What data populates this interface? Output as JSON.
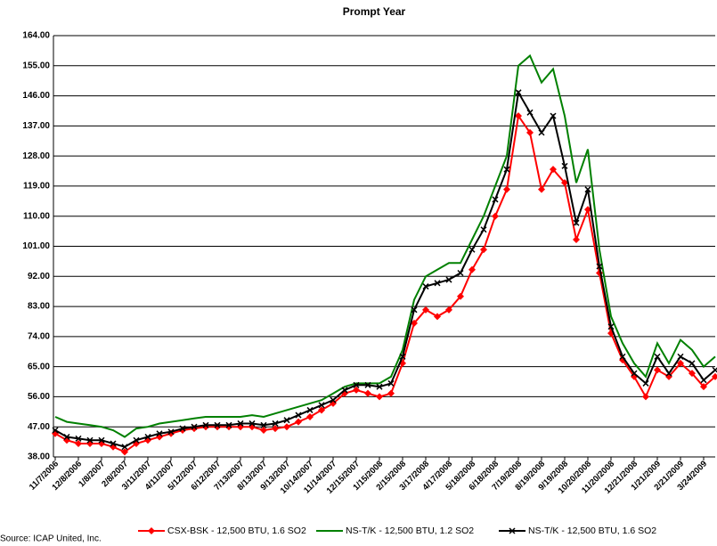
{
  "chart_data": {
    "type": "line",
    "title": "Prompt Year",
    "source": "Source:  ICAP United, Inc.",
    "categories": [
      "11/7/2006",
      null,
      "12/8/2006",
      null,
      "1/8/2007",
      null,
      "2/8/2007",
      null,
      "3/11/2007",
      null,
      "4/11/2007",
      null,
      "5/12/2007",
      null,
      "6/12/2007",
      null,
      "7/13/2007",
      null,
      "8/13/2007",
      null,
      "9/13/2007",
      null,
      "10/14/2007",
      null,
      "11/14/2007",
      null,
      "12/15/2007",
      null,
      "1/15/2008",
      null,
      "2/15/2008",
      null,
      "3/17/2008",
      null,
      "4/17/2008",
      null,
      "5/18/2008",
      null,
      "6/18/2008",
      null,
      "7/19/2008",
      null,
      "8/19/2008",
      null,
      "9/19/2008",
      null,
      "10/20/2008",
      null,
      "11/20/2008",
      null,
      "12/21/2008",
      null,
      "1/21/2009",
      null,
      "2/21/2009",
      null,
      "3/24/2009",
      null
    ],
    "series": [
      {
        "name": "CSX-BSK - 12,500 BTU, 1.6 SO2",
        "color": "#ff0000",
        "marker": "diamond",
        "values": [
          45,
          43,
          42,
          42,
          42,
          41,
          39.5,
          42,
          43,
          44,
          45,
          46,
          46.5,
          47,
          47,
          47,
          47,
          47,
          46,
          46.5,
          47,
          48.5,
          50,
          52,
          54,
          57,
          58,
          57,
          56,
          57,
          66,
          78,
          82,
          80,
          82,
          86,
          94,
          100,
          110,
          118,
          140,
          135,
          118,
          124,
          120,
          103,
          112,
          93,
          75,
          67,
          62,
          56,
          64,
          62,
          66,
          63,
          59,
          62
        ]
      },
      {
        "name": "NS-T/K - 12,500 BTU, 1.2 SO2",
        "color": "#008000",
        "marker": "none",
        "values": [
          50,
          48.5,
          48,
          47.5,
          47,
          46,
          44,
          46.5,
          47,
          48,
          48.5,
          49,
          49.5,
          50,
          50,
          50,
          50,
          50.5,
          50,
          51,
          52,
          53,
          54,
          55,
          57,
          59,
          60,
          60,
          60,
          62,
          70,
          85,
          92,
          94,
          96,
          96,
          103,
          110,
          119,
          128,
          155,
          158,
          150,
          154,
          140,
          120,
          130,
          100,
          80,
          72,
          66,
          62,
          72,
          66,
          73,
          70,
          65,
          68
        ]
      },
      {
        "name": "NS-T/K - 12,500 BTU, 1.6 SO2",
        "color": "#000000",
        "marker": "x",
        "values": [
          46,
          44,
          43.5,
          43,
          43,
          42,
          41,
          43,
          44,
          45,
          45.5,
          46.5,
          47,
          47.5,
          47.5,
          47.5,
          48,
          48,
          47.5,
          48,
          49,
          50.5,
          52,
          53.5,
          55,
          58,
          59.5,
          59.5,
          59,
          60,
          68,
          82,
          89,
          90,
          91,
          93,
          100,
          106,
          115,
          124,
          147,
          141,
          135,
          140,
          125,
          108,
          118,
          95,
          77,
          68,
          63,
          60,
          68,
          63,
          68,
          66,
          61,
          64
        ]
      }
    ],
    "ylim": [
      38,
      164
    ],
    "yticks": [
      {
        "value": 38,
        "label": "38.00"
      },
      {
        "value": 47,
        "label": "47.00"
      },
      {
        "value": 56,
        "label": "56.00"
      },
      {
        "value": 65,
        "label": "65.00"
      },
      {
        "value": 74,
        "label": "74.00"
      },
      {
        "value": 83,
        "label": "83.00"
      },
      {
        "value": 92,
        "label": "92.00"
      },
      {
        "value": 101,
        "label": "101.00"
      },
      {
        "value": 110,
        "label": "110.00"
      },
      {
        "value": 119,
        "label": "119.00"
      },
      {
        "value": 128,
        "label": "128.00"
      },
      {
        "value": 137,
        "label": "137.00"
      },
      {
        "value": 146,
        "label": "146.00"
      },
      {
        "value": 155,
        "label": "155.00"
      },
      {
        "value": 164,
        "label": "164.00"
      }
    ],
    "grid": true
  }
}
